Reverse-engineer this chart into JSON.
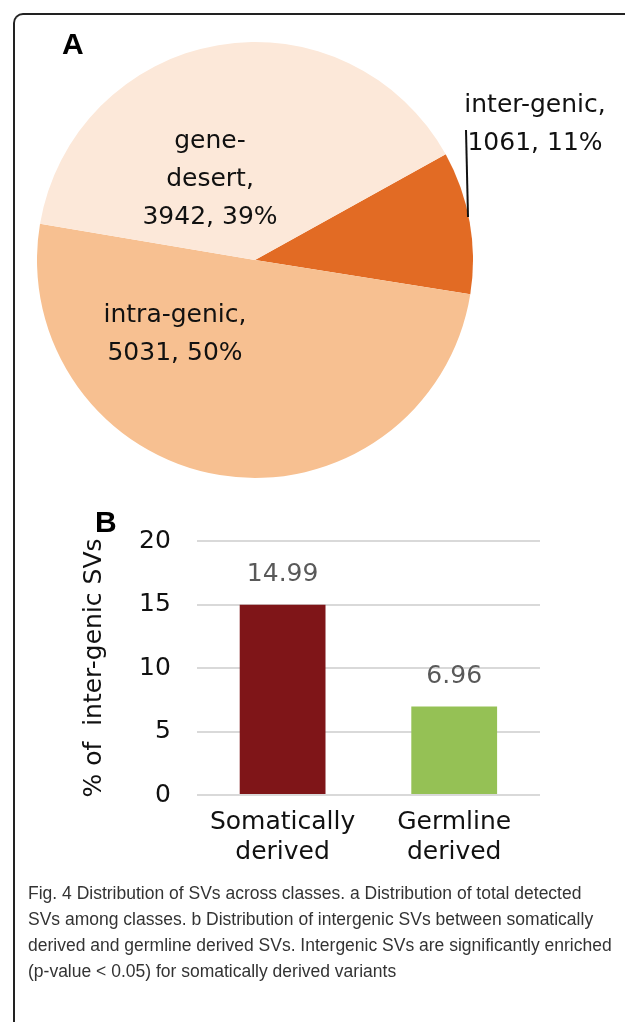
{
  "chart_data": [
    {
      "type": "pie",
      "title": "A",
      "categories": [
        "inter-genic",
        "intra-genic",
        "gene-desert"
      ],
      "values": [
        1061,
        5031,
        3942
      ],
      "value_labels": [
        ", 1061, 11%",
        ", 5031, 50%",
        ", 3942, 39%"
      ],
      "colors": [
        "#e26b24",
        "#f7c091",
        "#fce8d9"
      ],
      "legend": false
    },
    {
      "type": "bar",
      "title": "B",
      "ylabel": "% of  inter-genic SVs",
      "categories": [
        "Somatically derived",
        "Germline derived"
      ],
      "values": [
        14.99,
        6.96
      ],
      "colors": [
        "#7f1518",
        "#95c155"
      ],
      "ylim": [
        0,
        20
      ],
      "yticks": [
        0,
        5,
        10,
        15,
        20
      ],
      "grid": "y",
      "data_labels": true,
      "legend": false,
      "annotations": [
        "Fig. 4 Distribution of SVs across classes. a Distribution of total detected SVs among classes. b Distribution of intergenic SVs between somatically derived and germline derived SVs. Intergenic SVs are significantly enriched (p-value < 0.05) for somatically derived variants"
      ]
    }
  ]
}
